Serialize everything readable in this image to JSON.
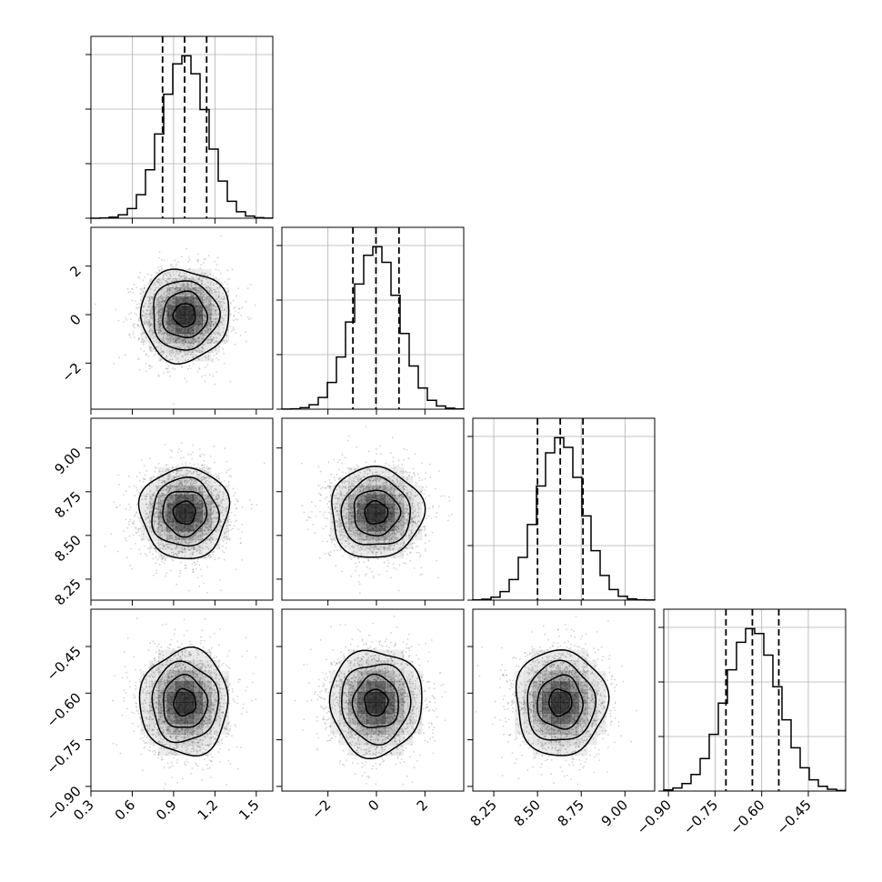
{
  "chart_data": {
    "type": "corner",
    "parameters": [
      {
        "mean": 0.98,
        "sd": 0.16,
        "quantiles": [
          0.82,
          0.98,
          1.14
        ],
        "range": [
          0.3,
          1.62
        ],
        "ticks": [
          0.3,
          0.6,
          0.9,
          1.2,
          1.5
        ],
        "tick_labels": [
          "0.3",
          "0.6",
          "0.9",
          "1.2",
          "1.5"
        ]
      },
      {
        "mean": -0.02,
        "sd": 0.95,
        "quantiles": [
          -0.97,
          -0.02,
          0.93
        ],
        "range": [
          -3.9,
          3.6
        ],
        "ticks": [
          -2,
          0,
          2
        ],
        "tick_labels": [
          "−2",
          "0",
          "2"
        ]
      },
      {
        "mean": 8.63,
        "sd": 0.13,
        "quantiles": [
          8.5,
          8.63,
          8.76
        ],
        "range": [
          8.13,
          9.17
        ],
        "ticks": [
          8.25,
          8.5,
          8.75,
          9.0
        ],
        "tick_labels": [
          "8.25",
          "8.50",
          "8.75",
          "9.00"
        ]
      },
      {
        "mean": -0.63,
        "sd": 0.085,
        "quantiles": [
          -0.715,
          -0.63,
          -0.545
        ],
        "range": [
          -0.915,
          -0.33
        ],
        "ticks": [
          -0.9,
          -0.75,
          -0.6,
          -0.45
        ],
        "tick_labels": [
          "−0.90",
          "−0.75",
          "−0.60",
          "−0.45"
        ]
      }
    ],
    "histogram_bins": 20,
    "sample_points_per_panel": 2200,
    "contour_levels_sigma": [
      0.5,
      1.0,
      1.5,
      2.0
    ],
    "grid": true,
    "legend": "none",
    "colors": {
      "line": "#000000",
      "density": "#000000",
      "points": "#808080",
      "grid": "#b0b0b0"
    }
  }
}
